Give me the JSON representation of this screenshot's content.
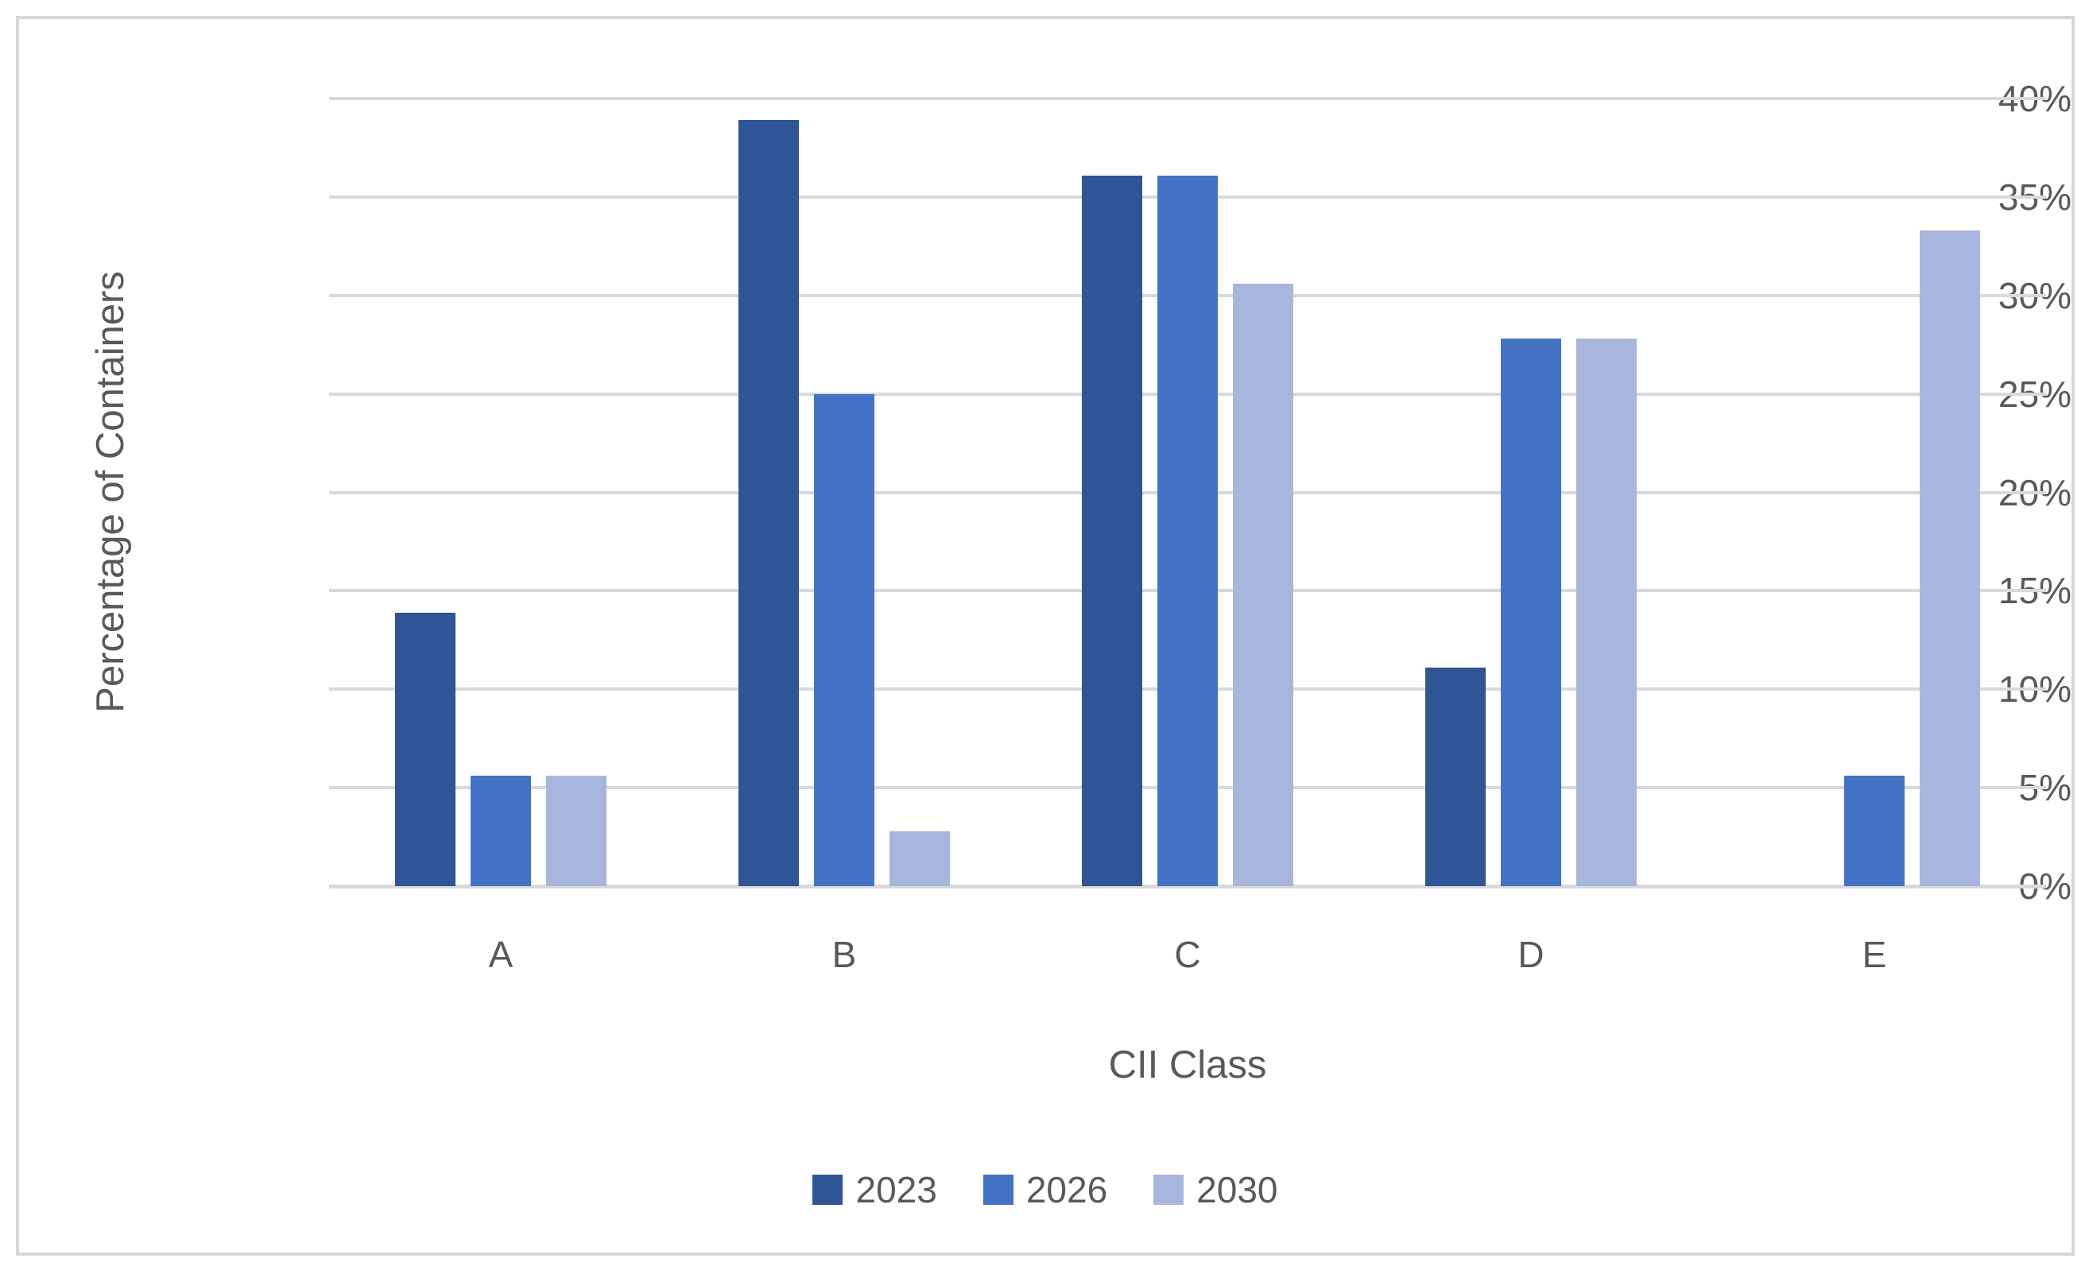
{
  "chart_data": {
    "type": "bar",
    "title": "",
    "categories": [
      "A",
      "B",
      "C",
      "D",
      "E"
    ],
    "series": [
      {
        "name": "2023",
        "color": "#2F5597",
        "values": [
          13.9,
          38.9,
          36.1,
          11.1,
          0
        ]
      },
      {
        "name": "2026",
        "color": "#4472C4",
        "values": [
          5.6,
          25.0,
          36.1,
          27.8,
          5.6
        ]
      },
      {
        "name": "2030",
        "color": "#A8B5DC",
        "values": [
          5.6,
          2.8,
          30.6,
          27.8,
          33.3
        ]
      }
    ],
    "xlabel": "CII Class",
    "ylabel": "Percentage of Containers",
    "ylim": [
      0,
      40
    ],
    "ytick_step": 5,
    "ytick_labels": [
      "0%",
      "5%",
      "10%",
      "15%",
      "20%",
      "25%",
      "30%",
      "35%",
      "40%"
    ],
    "grid": true,
    "legend_position": "bottom",
    "legend_entries": [
      "2023",
      "2026",
      "2030"
    ]
  },
  "colors": {
    "background": "#FFFFFF",
    "frame_border": "#D6D6D6",
    "gridline": "#D9D9D9",
    "axis_line": "#D9D9D9",
    "text": "#595959"
  }
}
